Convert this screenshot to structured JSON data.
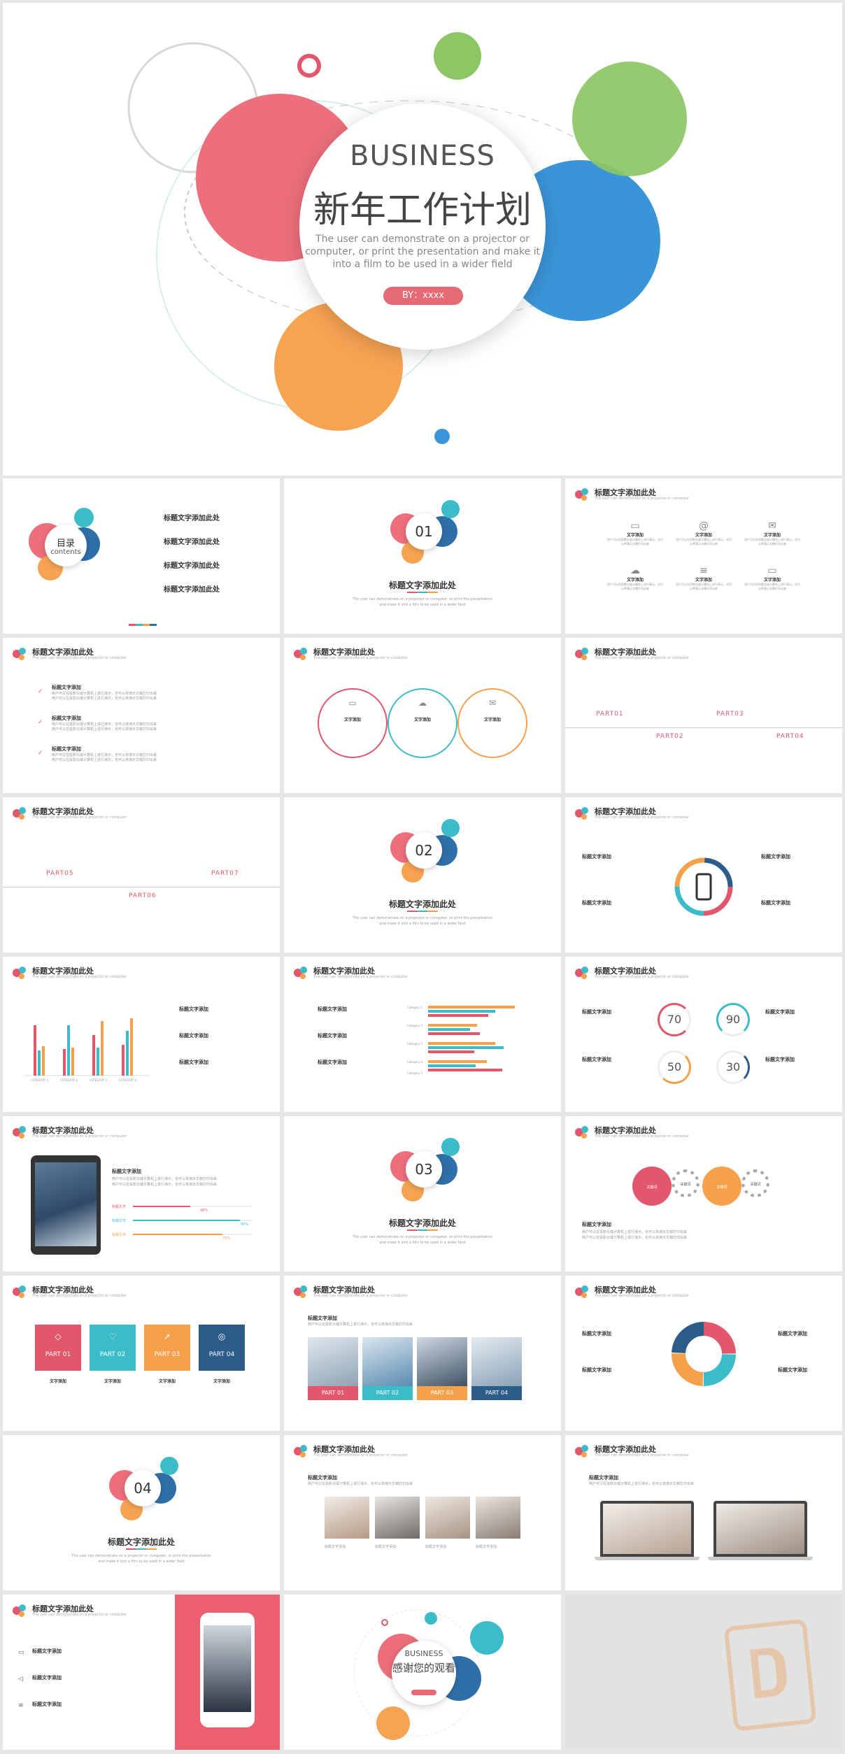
{
  "cover": {
    "business": "BUSINESS",
    "title": "新年工作计划",
    "desc_line1": "The user can demonstrate on a projector or",
    "desc_line2": "computer, or print the presentation and make it",
    "desc_line3": "into a film to be used in a wider field",
    "by_pill": "BY：xxxx"
  },
  "common": {
    "header_title": "标题文字添加此处",
    "header_sub": "The user can demonstrate on a projector or computer",
    "item_title": "标题文字添加",
    "item_label": "文字添加",
    "body_line": "用户可以在投影仪或计算机上进行演示，也可以将演示文稿打印出来",
    "section_desc1": "The user can demonstrate on a projector or computer, or print the presentation",
    "section_desc2": "and make it into a film to be used in a wider field"
  },
  "toc": {
    "title": "目录",
    "subtitle": "contents",
    "items": [
      "标题文字添加此处",
      "标题文字添加此处",
      "标题文字添加此处",
      "标题文字添加此处"
    ]
  },
  "sections": [
    "01",
    "02",
    "03",
    "04"
  ],
  "timeline1": [
    "PART01",
    "PART02",
    "PART03",
    "PART04"
  ],
  "timeline2": [
    "PART05",
    "PART06",
    "PART07"
  ],
  "rings": [
    "70",
    "90",
    "50",
    "30"
  ],
  "parts": [
    "PART 01",
    "PART 02",
    "PART 03",
    "PART 04"
  ],
  "gears": [
    "关键词",
    "关键词",
    "关键词",
    "关键词"
  ],
  "progress_label": "标题文字",
  "progress_pcts": [
    "48%",
    "90%",
    "75%"
  ],
  "hbar_categories": [
    "Category 1",
    "Category 2",
    "Category 3",
    "Category 4",
    "Category 5"
  ],
  "vbar_categories": [
    "CATEGORY 1",
    "CATEGORY 2",
    "CATEGORY 3",
    "CATEGORY 4"
  ],
  "photo_captions": [
    "标题文字添加",
    "标题文字添加",
    "标题文字添加",
    "标题文字添加"
  ],
  "ending": {
    "business": "BUSINESS",
    "title": "感谢您的观看"
  },
  "colors": {
    "red": "#e2576b",
    "blue": "#2f91d8",
    "teal": "#3bbcc8",
    "orange": "#f5a04a",
    "green": "#8cc665",
    "navy": "#2b5c8a"
  }
}
